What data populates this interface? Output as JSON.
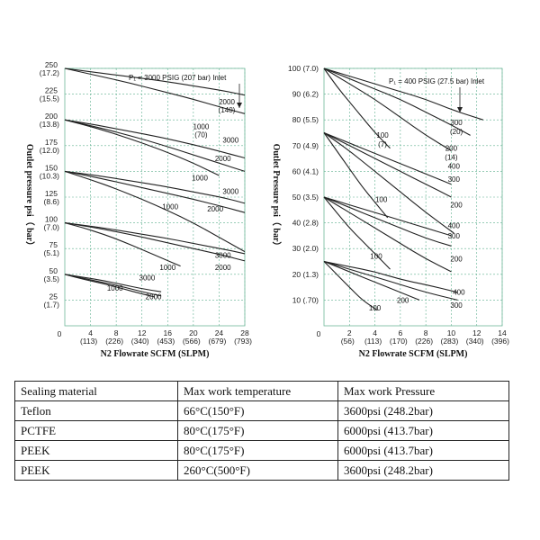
{
  "chart_data": [
    {
      "type": "line",
      "title": "",
      "annotation": "P₁ = 3000 PSIG (207 bar) Inlet",
      "xlabel": "N2 Flowrate  SCFM (SLPM)",
      "ylabel": "Outlet pressure psi（ bar）",
      "xlim": [
        0,
        28
      ],
      "ylim": [
        0,
        250
      ],
      "x_ticks": [
        {
          "value": 4,
          "label": "4",
          "sub": "(113)"
        },
        {
          "value": 8,
          "label": "8",
          "sub": "(226)"
        },
        {
          "value": 12,
          "label": "12",
          "sub": "(340)"
        },
        {
          "value": 16,
          "label": "16",
          "sub": "(453)"
        },
        {
          "value": 20,
          "label": "20",
          "sub": "(566)"
        },
        {
          "value": 24,
          "label": "24",
          "sub": "(679)"
        },
        {
          "value": 28,
          "label": "28",
          "sub": "(793)"
        }
      ],
      "origin_label": "0",
      "y_ticks": [
        {
          "value": 250,
          "label": "250",
          "sub": "(17.2)"
        },
        {
          "value": 225,
          "label": "225",
          "sub": "(15.5)"
        },
        {
          "value": 200,
          "label": "200",
          "sub": "(13.8)"
        },
        {
          "value": 175,
          "label": "175",
          "sub": "(12.0)"
        },
        {
          "value": 150,
          "label": "150",
          "sub": "(10.3)"
        },
        {
          "value": 125,
          "label": "125",
          "sub": "(8.6)"
        },
        {
          "value": 100,
          "label": "100",
          "sub": "(7.0)"
        },
        {
          "value": 75,
          "label": "75",
          "sub": "(5.1)"
        },
        {
          "value": 50,
          "label": "50",
          "sub": "(3.5)"
        },
        {
          "value": 25,
          "label": "25",
          "sub": "(1.7)"
        }
      ],
      "series": [
        {
          "name": "3000",
          "set": 250,
          "x": [
            0,
            5,
            10,
            15,
            20,
            25,
            28
          ],
          "y": [
            250,
            246,
            242,
            238,
            233,
            228,
            224
          ]
        },
        {
          "name": "2000",
          "set": 250,
          "x": [
            0,
            5,
            10,
            15,
            20,
            25,
            28
          ],
          "y": [
            250,
            243,
            236,
            228,
            220,
            211,
            206
          ]
        },
        {
          "name": "3000",
          "set": 200,
          "x": [
            0,
            5,
            10,
            15,
            20,
            25,
            28
          ],
          "y": [
            200,
            195,
            189,
            183,
            176,
            168,
            163
          ]
        },
        {
          "name": "1000",
          "set": 200,
          "x": [
            0,
            5,
            10,
            15,
            20,
            24
          ],
          "y": [
            200,
            192,
            182,
            171,
            158,
            146
          ]
        },
        {
          "name": "2000",
          "set": 200,
          "x": [
            0,
            5,
            10,
            15,
            20,
            25,
            28
          ],
          "y": [
            200,
            193,
            185,
            176,
            166,
            156,
            150
          ]
        },
        {
          "name": "3000",
          "set": 150,
          "x": [
            0,
            5,
            10,
            15,
            20,
            25,
            28
          ],
          "y": [
            150,
            146,
            141,
            136,
            130,
            124,
            119
          ]
        },
        {
          "name": "2000",
          "set": 150,
          "x": [
            0,
            5,
            10,
            15,
            20,
            25,
            28
          ],
          "y": [
            150,
            144,
            137,
            130,
            123,
            115,
            110
          ]
        },
        {
          "name": "1000",
          "set": 150,
          "x": [
            0,
            4,
            8,
            12,
            16,
            20,
            24,
            28
          ],
          "y": [
            150,
            142,
            133,
            123,
            112,
            100,
            86,
            72
          ]
        },
        {
          "name": "3000",
          "set": 100,
          "x": [
            0,
            5,
            10,
            15,
            20,
            25,
            28
          ],
          "y": [
            100,
            96,
            91,
            86,
            80,
            74,
            70
          ]
        },
        {
          "name": "2000",
          "set": 100,
          "x": [
            0,
            5,
            10,
            15,
            20,
            25,
            28
          ],
          "y": [
            100,
            95,
            89,
            82,
            75,
            68,
            63
          ]
        },
        {
          "name": "1000",
          "set": 100,
          "x": [
            0,
            3,
            6,
            9,
            12,
            15,
            18
          ],
          "y": [
            100,
            95,
            89,
            82,
            74,
            66,
            58
          ]
        },
        {
          "name": "3000",
          "set": 50,
          "x": [
            0,
            3,
            6,
            9,
            12,
            15
          ],
          "y": [
            50,
            47,
            44,
            40,
            36,
            33
          ]
        },
        {
          "name": "2000",
          "set": 50,
          "x": [
            0,
            3,
            6,
            9,
            12,
            15
          ],
          "y": [
            50,
            46,
            42,
            38,
            33,
            29
          ]
        },
        {
          "name": "1000",
          "set": 50,
          "x": [
            0,
            3,
            6,
            9,
            12,
            14
          ],
          "y": [
            50,
            45,
            41,
            36,
            31,
            28
          ]
        }
      ],
      "labels": [
        {
          "text": "2000",
          "x": 25.2,
          "y": 215
        },
        {
          "text": "(140)",
          "x": 25.2,
          "y": 207
        },
        {
          "text": "1000",
          "x": 21.2,
          "y": 191
        },
        {
          "text": "(70)",
          "x": 21.2,
          "y": 183
        },
        {
          "text": "3000",
          "x": 25.8,
          "y": 178
        },
        {
          "text": "2000",
          "x": 24.6,
          "y": 160
        },
        {
          "text": "1000",
          "x": 21.0,
          "y": 141
        },
        {
          "text": "3000",
          "x": 25.8,
          "y": 128
        },
        {
          "text": "1000",
          "x": 16.4,
          "y": 113
        },
        {
          "text": "2000",
          "x": 23.4,
          "y": 111
        },
        {
          "text": "3000",
          "x": 24.6,
          "y": 66
        },
        {
          "text": "1000",
          "x": 16.0,
          "y": 54
        },
        {
          "text": "2000",
          "x": 24.6,
          "y": 54
        },
        {
          "text": "3000",
          "x": 12.8,
          "y": 44
        },
        {
          "text": "1000",
          "x": 7.8,
          "y": 34
        },
        {
          "text": "2000",
          "x": 13.8,
          "y": 26
        }
      ]
    },
    {
      "type": "line",
      "title": "",
      "annotation": "P₁ = 400 PSIG (27.5 bar) Inlet",
      "xlabel": "N2 Flowrate  SCFM (SLPM)",
      "ylabel": "Outlet Pressure psi（ bar）",
      "xlim": [
        0,
        14
      ],
      "ylim": [
        0,
        100
      ],
      "x_ticks": [
        {
          "value": 2,
          "label": "2",
          "sub": "(56)"
        },
        {
          "value": 4,
          "label": "4",
          "sub": "(113)"
        },
        {
          "value": 6,
          "label": "6",
          "sub": "(170)"
        },
        {
          "value": 8,
          "label": "8",
          "sub": "(226)"
        },
        {
          "value": 10,
          "label": "10",
          "sub": "(283)"
        },
        {
          "value": 12,
          "label": "12",
          "sub": "(340)"
        },
        {
          "value": 14,
          "label": "14",
          "sub": "(396)"
        }
      ],
      "origin_label": "0",
      "y_ticks": [
        {
          "value": 100,
          "label": "100 (7.0)"
        },
        {
          "value": 90,
          "label": "90 (6.2)"
        },
        {
          "value": 80,
          "label": "80 (5.5)"
        },
        {
          "value": 70,
          "label": "70 (4.9)"
        },
        {
          "value": 60,
          "label": "60 (4.1)"
        },
        {
          "value": 50,
          "label": "50 (3.5)"
        },
        {
          "value": 40,
          "label": "40 (2.8)"
        },
        {
          "value": 30,
          "label": "30 (2.0)"
        },
        {
          "value": 20,
          "label": "20 (1.3)"
        },
        {
          "value": 10,
          "label": "10 (.70)"
        }
      ],
      "series": [
        {
          "name": "400",
          "set": 100,
          "x": [
            0,
            2,
            4,
            6,
            8,
            10,
            12.5
          ],
          "y": [
            100,
            97,
            94,
            91,
            88,
            84,
            80
          ]
        },
        {
          "name": "300",
          "set": 100,
          "x": [
            0,
            2,
            4,
            6,
            8,
            10,
            11.5
          ],
          "y": [
            100,
            96,
            92,
            88,
            83,
            78,
            74
          ]
        },
        {
          "name": "200",
          "set": 100,
          "x": [
            0,
            2,
            4,
            6,
            8,
            10
          ],
          "y": [
            100,
            94,
            88,
            81,
            74,
            68
          ]
        },
        {
          "name": "100",
          "set": 100,
          "x": [
            0,
            1,
            2,
            3,
            4,
            5.2
          ],
          "y": [
            100,
            93,
            87,
            81,
            75,
            69
          ]
        },
        {
          "name": "400",
          "set": 75,
          "x": [
            0,
            2,
            4,
            6,
            8,
            10
          ],
          "y": [
            75,
            71,
            67,
            63,
            59,
            55
          ]
        },
        {
          "name": "300",
          "set": 75,
          "x": [
            0,
            2,
            4,
            6,
            8,
            10
          ],
          "y": [
            75,
            70,
            65,
            60,
            55,
            50
          ]
        },
        {
          "name": "200",
          "set": 75,
          "x": [
            0,
            2,
            4,
            6,
            8,
            10.2
          ],
          "y": [
            75,
            68,
            60,
            52,
            44,
            36
          ]
        },
        {
          "name": "100",
          "set": 75,
          "x": [
            0,
            1,
            2,
            3,
            4,
            5
          ],
          "y": [
            75,
            68,
            61,
            54,
            48,
            42
          ]
        },
        {
          "name": "400",
          "set": 50,
          "x": [
            0,
            2,
            4,
            6,
            8,
            10
          ],
          "y": [
            50,
            47,
            44,
            41,
            38,
            35
          ]
        },
        {
          "name": "300",
          "set": 50,
          "x": [
            0,
            2,
            4,
            6,
            8,
            10
          ],
          "y": [
            50,
            46,
            42,
            38,
            34,
            31
          ]
        },
        {
          "name": "200",
          "set": 50,
          "x": [
            0,
            2,
            4,
            6,
            8,
            10
          ],
          "y": [
            50,
            44,
            38,
            32,
            26,
            21
          ]
        },
        {
          "name": "100",
          "set": 50,
          "x": [
            0,
            1,
            2,
            3,
            4,
            5.2
          ],
          "y": [
            50,
            44,
            38,
            33,
            28,
            22
          ]
        },
        {
          "name": "400",
          "set": 25,
          "x": [
            0,
            2,
            4,
            6,
            8,
            10.5
          ],
          "y": [
            25,
            23,
            21,
            18,
            16,
            13
          ]
        },
        {
          "name": "300",
          "set": 25,
          "x": [
            0,
            2,
            4,
            6,
            8,
            10.5
          ],
          "y": [
            25,
            22,
            19,
            16,
            13,
            10
          ]
        },
        {
          "name": "200",
          "set": 25,
          "x": [
            0,
            2,
            4,
            6,
            7.5
          ],
          "y": [
            25,
            21,
            17,
            13,
            10
          ]
        },
        {
          "name": "100",
          "set": 25,
          "x": [
            0,
            1,
            2,
            3,
            4.2
          ],
          "y": [
            25,
            20,
            15,
            10,
            6
          ]
        }
      ],
      "labels": [
        {
          "text": "300",
          "x": 10.4,
          "y": 78
        },
        {
          "text": "(20)",
          "x": 10.4,
          "y": 74.5
        },
        {
          "text": "100",
          "x": 4.6,
          "y": 73
        },
        {
          "text": "(7)",
          "x": 4.6,
          "y": 69.5
        },
        {
          "text": "200",
          "x": 10.0,
          "y": 68
        },
        {
          "text": "(14)",
          "x": 10.0,
          "y": 64.5
        },
        {
          "text": "400",
          "x": 10.2,
          "y": 61
        },
        {
          "text": "300",
          "x": 10.2,
          "y": 56
        },
        {
          "text": "100",
          "x": 4.5,
          "y": 48
        },
        {
          "text": "200",
          "x": 10.4,
          "y": 46
        },
        {
          "text": "400",
          "x": 10.2,
          "y": 38
        },
        {
          "text": "300",
          "x": 10.2,
          "y": 34
        },
        {
          "text": "100",
          "x": 4.1,
          "y": 26
        },
        {
          "text": "200",
          "x": 10.4,
          "y": 25
        },
        {
          "text": "400",
          "x": 10.6,
          "y": 12
        },
        {
          "text": "200",
          "x": 6.2,
          "y": 9
        },
        {
          "text": "300",
          "x": 10.4,
          "y": 7
        },
        {
          "text": "100",
          "x": 4.0,
          "y": 6
        }
      ]
    }
  ],
  "table": {
    "headers": [
      "Sealing material",
      "Max work temperature",
      "Max work Pressure"
    ],
    "rows": [
      [
        "Teflon",
        "66°C(150°F)",
        "3600psi (248.2bar)"
      ],
      [
        "PCTFE",
        "80°C(175°F)",
        "6000psi (413.7bar)"
      ],
      [
        "PEEK",
        "80°C(175°F)",
        "6000psi (413.7bar)"
      ],
      [
        "PEEK",
        "260°C(500°F)",
        "3600psi (248.2bar)"
      ]
    ]
  },
  "colors": {
    "grid": "#5fb08f",
    "ink": "#222222"
  }
}
